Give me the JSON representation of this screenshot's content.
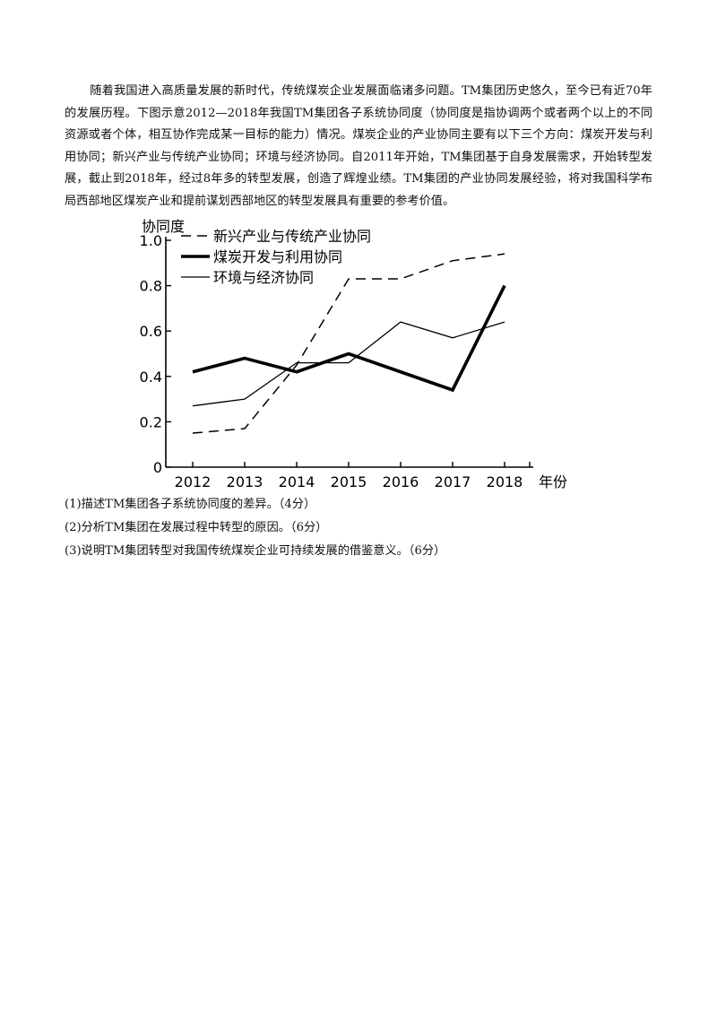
{
  "intro": {
    "paragraph": "随着我国进入高质量发展的新时代，传统煤炭企业发展面临诸多问题。TM集团历史悠久，至今已有近70年的发展历程。下图示意2012—2018年我国TM集团各子系统协同度（协同度是指协调两个或者两个以上的不同资源或者个体，相互协作完成某一目标的能力）情况。煤炭企业的产业协同主要有以下三个方向：煤炭开发与利用协同；新兴产业与传统产业协同；环境与经济协同。自2011年开始，TM集团基于自身发展需求，开始转型发展，截止到2018年，经过8年多的转型发展，创造了辉煌业绩。TM集团的产业协同发展经验，将对我国科学布局西部地区煤炭产业和提前谋划西部地区的转型发展具有重要的参考价值。"
  },
  "chart_data": {
    "type": "line",
    "ylabel": "协同度",
    "xlabel": "年份",
    "x": [
      "2012",
      "2013",
      "2014",
      "2015",
      "2016",
      "2017",
      "2018"
    ],
    "y_ticks": [
      "0",
      "0.2",
      "0.4",
      "0.6",
      "0.8",
      "1.0"
    ],
    "ylim": [
      0,
      1.0
    ],
    "legend_position": "top-left",
    "series": [
      {
        "name": "新兴产业与传统产业协同",
        "style": "dashed",
        "color": "#000000",
        "values": [
          0.15,
          0.17,
          0.45,
          0.83,
          0.83,
          0.91,
          0.94
        ]
      },
      {
        "name": "煤炭开发与利用协同",
        "style": "bold",
        "color": "#000000",
        "values": [
          0.42,
          0.48,
          0.42,
          0.5,
          0.42,
          0.34,
          0.8
        ]
      },
      {
        "name": "环境与经济协同",
        "style": "thin",
        "color": "#000000",
        "values": [
          0.27,
          0.3,
          0.46,
          0.46,
          0.64,
          0.57,
          0.64
        ]
      }
    ]
  },
  "questions": [
    "(1)描述TM集团各子系统协同度的差异。（4分）",
    "(2)分析TM集团在发展过程中转型的原因。（6分）",
    "(3)说明TM集团转型对我国传统煤炭企业可持续发展的借鉴意义。（6分）"
  ]
}
